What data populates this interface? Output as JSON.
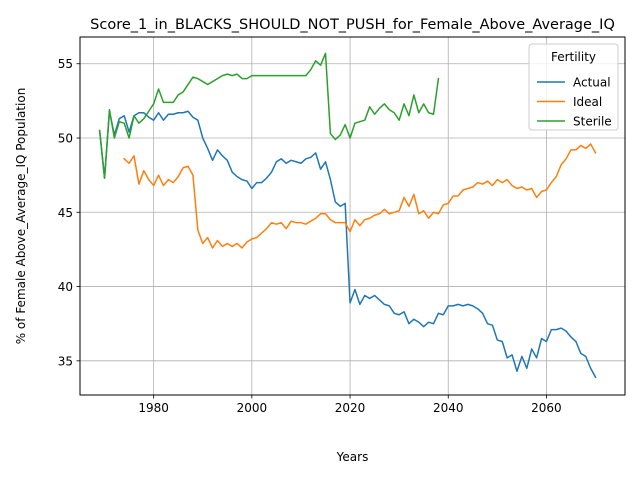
{
  "chart_data": {
    "type": "line",
    "title": "Score_1_in_BLACKS_SHOULD_NOT_PUSH_for_Female_Above_Average_IQ",
    "xlabel": "Years",
    "ylabel": "% of Female Above_Average_IQ Population",
    "xlim": [
      1965,
      2076
    ],
    "ylim": [
      32.7,
      56.8
    ],
    "xticks": [
      1980,
      2000,
      2020,
      2040,
      2060
    ],
    "yticks": [
      35,
      40,
      45,
      50,
      55
    ],
    "grid": true,
    "legend": {
      "title": "Fertility",
      "placement": "top-right"
    },
    "colors": {
      "Actual": "#1f77b4",
      "Ideal": "#ff7f0e",
      "Sterile": "#2ca02c"
    },
    "series": [
      {
        "name": "Actual",
        "x": [
          1969,
          1970,
          1971,
          1972,
          1973,
          1974,
          1975,
          1976,
          1977,
          1978,
          1979,
          1980,
          1981,
          1982,
          1983,
          1984,
          1985,
          1986,
          1987,
          1988,
          1989,
          1990,
          1991,
          1992,
          1993,
          1994,
          1995,
          1996,
          1997,
          1998,
          1999,
          2000,
          2001,
          2002,
          2003,
          2004,
          2005,
          2006,
          2007,
          2008,
          2009,
          2010,
          2011,
          2012,
          2013,
          2014,
          2015,
          2016,
          2017,
          2018,
          2019,
          2020,
          2021,
          2022,
          2023,
          2024,
          2025,
          2026,
          2027,
          2028,
          2029,
          2030,
          2031,
          2032,
          2033,
          2034,
          2035,
          2036,
          2037,
          2038,
          2039,
          2040,
          2041,
          2042,
          2043,
          2044,
          2045,
          2046,
          2047,
          2048,
          2049,
          2050,
          2051,
          2052,
          2053,
          2054,
          2055,
          2056,
          2057,
          2058,
          2059,
          2060,
          2061,
          2062,
          2063,
          2064,
          2065,
          2066,
          2067,
          2068,
          2069,
          2070
        ],
        "values": [
          50.5,
          47.3,
          51.8,
          50.2,
          51.3,
          51.5,
          50.4,
          51.5,
          51.7,
          51.7,
          51.4,
          51.2,
          51.7,
          51.2,
          51.6,
          51.6,
          51.7,
          51.7,
          51.8,
          51.4,
          51.2,
          50.0,
          49.3,
          48.5,
          49.2,
          48.8,
          48.5,
          47.7,
          47.4,
          47.2,
          47.1,
          46.6,
          47.0,
          47.0,
          47.3,
          47.7,
          48.4,
          48.6,
          48.3,
          48.5,
          48.4,
          48.3,
          48.6,
          48.7,
          49.0,
          47.9,
          48.4,
          47.2,
          45.7,
          45.4,
          45.6,
          38.9,
          39.8,
          38.8,
          39.4,
          39.2,
          39.4,
          39.1,
          38.8,
          38.7,
          38.2,
          38.1,
          38.3,
          37.5,
          37.8,
          37.6,
          37.3,
          37.6,
          37.5,
          38.2,
          38.1,
          38.7,
          38.7,
          38.8,
          38.7,
          38.8,
          38.7,
          38.5,
          38.2,
          37.5,
          37.4,
          36.4,
          36.3,
          35.2,
          35.4,
          34.3,
          35.3,
          34.5,
          35.8,
          35.2,
          36.5,
          36.3,
          37.1,
          37.1,
          37.2,
          37.0,
          36.6,
          36.3,
          35.5,
          35.3,
          34.5,
          33.9
        ]
      },
      {
        "name": "Ideal",
        "x": [
          1974,
          1975,
          1976,
          1977,
          1978,
          1979,
          1980,
          1981,
          1982,
          1983,
          1984,
          1985,
          1986,
          1987,
          1988,
          1989,
          1990,
          1991,
          1992,
          1993,
          1994,
          1995,
          1996,
          1997,
          1998,
          1999,
          2000,
          2001,
          2002,
          2003,
          2004,
          2005,
          2006,
          2007,
          2008,
          2009,
          2010,
          2011,
          2012,
          2013,
          2014,
          2015,
          2016,
          2017,
          2018,
          2019,
          2020,
          2021,
          2022,
          2023,
          2024,
          2025,
          2026,
          2027,
          2028,
          2029,
          2030,
          2031,
          2032,
          2033,
          2034,
          2035,
          2036,
          2037,
          2038,
          2039,
          2040,
          2041,
          2042,
          2043,
          2044,
          2045,
          2046,
          2047,
          2048,
          2049,
          2050,
          2051,
          2052,
          2053,
          2054,
          2055,
          2056,
          2057,
          2058,
          2059,
          2060,
          2061,
          2062,
          2063,
          2064,
          2065,
          2066,
          2067,
          2068,
          2069,
          2070
        ],
        "values": [
          48.6,
          48.3,
          48.8,
          46.9,
          47.8,
          47.2,
          46.8,
          47.5,
          46.8,
          47.2,
          47.0,
          47.4,
          48.0,
          48.1,
          47.5,
          43.8,
          42.9,
          43.3,
          42.6,
          43.1,
          42.7,
          42.9,
          42.7,
          42.9,
          42.6,
          43.0,
          43.2,
          43.3,
          43.6,
          43.9,
          44.3,
          44.2,
          44.3,
          43.9,
          44.4,
          44.3,
          44.3,
          44.2,
          44.4,
          44.6,
          44.9,
          44.9,
          44.5,
          44.3,
          44.3,
          44.3,
          43.7,
          44.5,
          44.1,
          44.5,
          44.6,
          44.8,
          44.9,
          45.2,
          44.9,
          45.0,
          45.1,
          46.0,
          45.4,
          46.2,
          44.9,
          45.1,
          44.6,
          45.0,
          44.9,
          45.5,
          45.6,
          46.1,
          46.1,
          46.5,
          46.6,
          46.7,
          47.0,
          46.9,
          47.1,
          46.8,
          47.2,
          47.0,
          47.2,
          46.8,
          46.6,
          46.7,
          46.5,
          46.6,
          46.0,
          46.4,
          46.5,
          47.0,
          47.4,
          48.2,
          48.6,
          49.2,
          49.2,
          49.5,
          49.3,
          49.6,
          49.0
        ]
      },
      {
        "name": "Sterile",
        "x": [
          1969,
          1970,
          1971,
          1972,
          1973,
          1974,
          1975,
          1976,
          1977,
          1978,
          1979,
          1980,
          1981,
          1982,
          1983,
          1984,
          1985,
          1986,
          1987,
          1988,
          1989,
          1990,
          1991,
          1992,
          1993,
          1994,
          1995,
          1996,
          1997,
          1998,
          1999,
          2000,
          2001,
          2002,
          2003,
          2004,
          2005,
          2006,
          2007,
          2008,
          2009,
          2010,
          2011,
          2012,
          2013,
          2014,
          2015,
          2016,
          2017,
          2018,
          2019,
          2020,
          2021,
          2022,
          2023,
          2024,
          2025,
          2026,
          2027,
          2028,
          2029,
          2030,
          2031,
          2032,
          2033,
          2034,
          2035,
          2036,
          2037,
          2038
        ],
        "values": [
          50.5,
          47.3,
          51.9,
          50.0,
          51.1,
          51.0,
          50.0,
          51.5,
          51.0,
          51.3,
          51.8,
          52.3,
          53.3,
          52.4,
          52.4,
          52.4,
          52.9,
          53.1,
          53.6,
          54.1,
          54.0,
          53.8,
          53.6,
          53.8,
          54.0,
          54.2,
          54.3,
          54.2,
          54.3,
          54.0,
          54.0,
          54.2,
          54.2,
          54.2,
          54.2,
          54.2,
          54.2,
          54.2,
          54.2,
          54.2,
          54.2,
          54.2,
          54.2,
          54.6,
          55.2,
          54.9,
          55.7,
          50.3,
          49.9,
          50.2,
          50.9,
          50.0,
          51.0,
          51.1,
          51.2,
          52.1,
          51.6,
          52.0,
          52.3,
          51.9,
          51.7,
          51.2,
          52.3,
          51.5,
          52.9,
          51.7,
          52.3,
          51.7,
          51.6,
          54.0
        ]
      }
    ]
  }
}
